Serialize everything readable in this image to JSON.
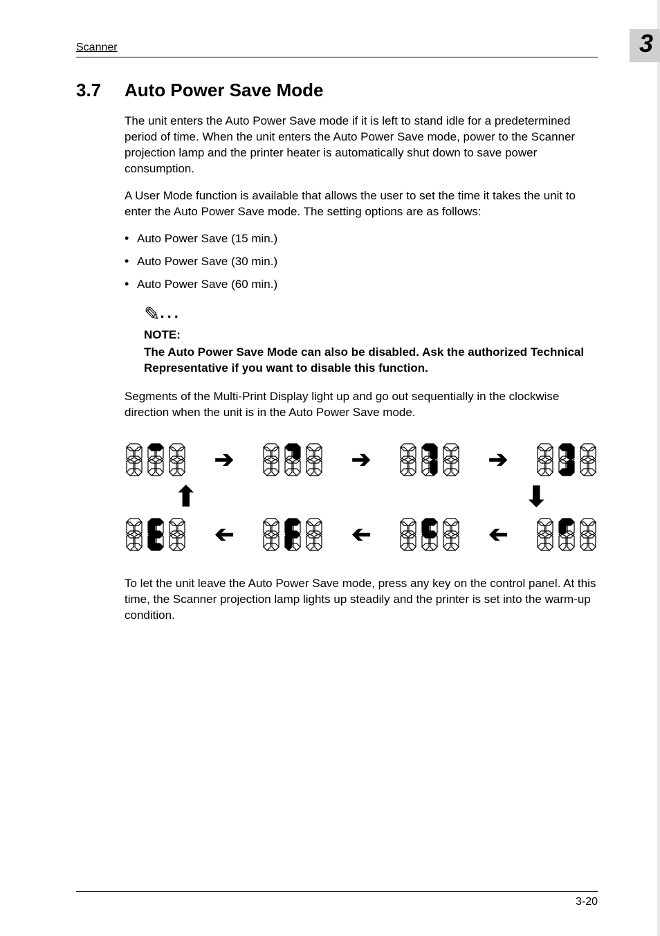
{
  "header": {
    "left": "Scanner",
    "chapter": "3"
  },
  "section": {
    "number": "3.7",
    "title": "Auto Power Save Mode"
  },
  "paragraphs": {
    "p1": "The unit enters the Auto Power Save mode if it is left to stand idle for a predetermined period of time. When the unit enters the Auto Power Save mode, power to the Scanner projection lamp and the printer heater is automatically shut down to save power consumption.",
    "p2": "A User Mode function is available that allows the user to set the time it takes the unit to enter the Auto Power Save mode. The setting options are as follows:",
    "p3": "Segments of the Multi-Print Display light up and go out sequentially in the clockwise direction when the unit is in the Auto Power Save mode.",
    "p4": "To let the unit leave the Auto Power Save mode, press any key on the control panel. At this time, the Scanner projection lamp lights up steadily and the printer is set into the warm-up condition."
  },
  "bullets": [
    "Auto Power Save (15 min.)",
    "Auto Power Save (30 min.)",
    "Auto Power Save (60 min.)"
  ],
  "note": {
    "label": "NOTE:",
    "text": "The Auto Power Save Mode can also be disabled. Ask the authorized Technical Representative if you want to disable this function."
  },
  "diagram": {
    "digits_per_group": 3,
    "groups_per_row": 4,
    "segment_width": 28,
    "segment_height": 52,
    "stroke": "#000000",
    "stroke_width": 1.2,
    "top_row_lit": [
      [
        [],
        [
          "A"
        ],
        []
      ],
      [
        [],
        [
          "A",
          "B"
        ],
        []
      ],
      [
        [],
        [
          "A",
          "B",
          "C"
        ],
        []
      ],
      [
        [],
        [
          "A",
          "B",
          "C",
          "D"
        ],
        []
      ]
    ],
    "bottom_row_lit": [
      [
        [],
        [
          "A",
          "F",
          "G",
          "E",
          "D"
        ],
        []
      ],
      [
        [],
        [
          "A",
          "F",
          "G",
          "E"
        ],
        []
      ],
      [
        [],
        [
          "A",
          "F",
          "G"
        ],
        []
      ],
      [
        [],
        [
          "A",
          "F"
        ],
        []
      ]
    ]
  },
  "footer": {
    "page": "3-20"
  }
}
